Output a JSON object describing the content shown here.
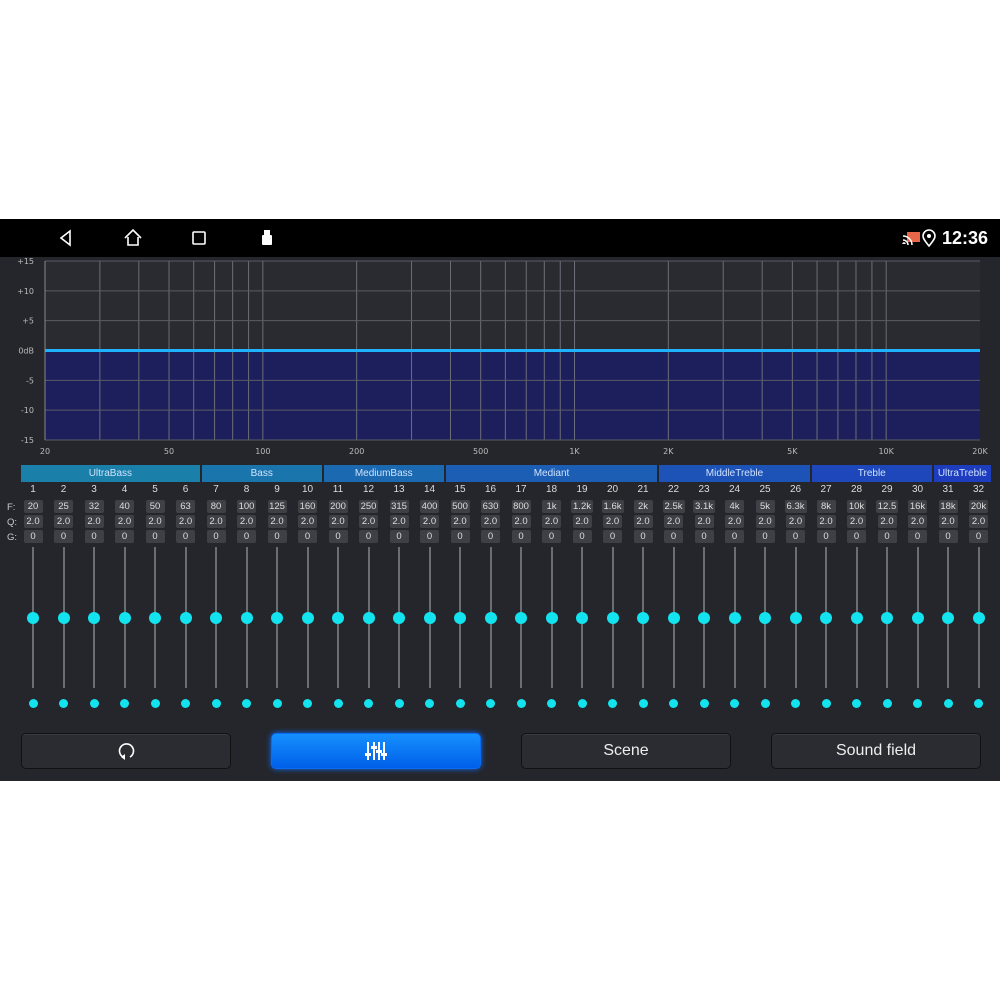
{
  "status_bar": {
    "time": "12:36",
    "icons": [
      "back-icon",
      "home-icon",
      "recents-icon",
      "usb-icon",
      "cast-icon",
      "location-icon"
    ],
    "cast_color": "#e8674a"
  },
  "graph": {
    "y_labels": [
      "+15",
      "+10",
      "+5",
      "0dB",
      "-5",
      "-10",
      "-15"
    ],
    "x_labels": [
      "20",
      "50",
      "100",
      "200",
      "500",
      "1K",
      "2K",
      "5K",
      "10K",
      "20K"
    ],
    "y_range": [
      -15,
      15
    ],
    "x_range_hz": [
      20,
      20000
    ],
    "scale": "log",
    "curve_gain_db": 0,
    "curve_color": "#1fb3ff",
    "fill_color": "#1d1f5c"
  },
  "groups": [
    {
      "label": "UltraBass",
      "bands": [
        1,
        6
      ]
    },
    {
      "label": "Bass",
      "bands": [
        7,
        10
      ]
    },
    {
      "label": "MediumBass",
      "bands": [
        11,
        14
      ]
    },
    {
      "label": "Mediant",
      "bands": [
        15,
        21
      ]
    },
    {
      "label": "MiddleTreble",
      "bands": [
        22,
        26
      ]
    },
    {
      "label": "Treble",
      "bands": [
        27,
        30
      ]
    },
    {
      "label": "UltraTreble",
      "bands": [
        31,
        32
      ]
    }
  ],
  "row_labels": {
    "f": "F:",
    "q": "Q:",
    "g": "G:"
  },
  "bands": {
    "f": [
      "20",
      "25",
      "32",
      "40",
      "50",
      "63",
      "80",
      "100",
      "125",
      "160",
      "200",
      "250",
      "315",
      "400",
      "500",
      "630",
      "800",
      "1k",
      "1.2k",
      "1.6k",
      "2k",
      "2.5k",
      "3.1k",
      "4k",
      "5k",
      "6.3k",
      "8k",
      "10k",
      "12.5",
      "16k",
      "18k",
      "20k"
    ],
    "q": "2.0",
    "g": "0",
    "gain_range": [
      -15,
      15
    ]
  },
  "buttons": {
    "reset_icon": "reset-icon",
    "eq_icon": "sliders-icon",
    "scene": "Scene",
    "sound_field": "Sound field",
    "active": "eq"
  }
}
